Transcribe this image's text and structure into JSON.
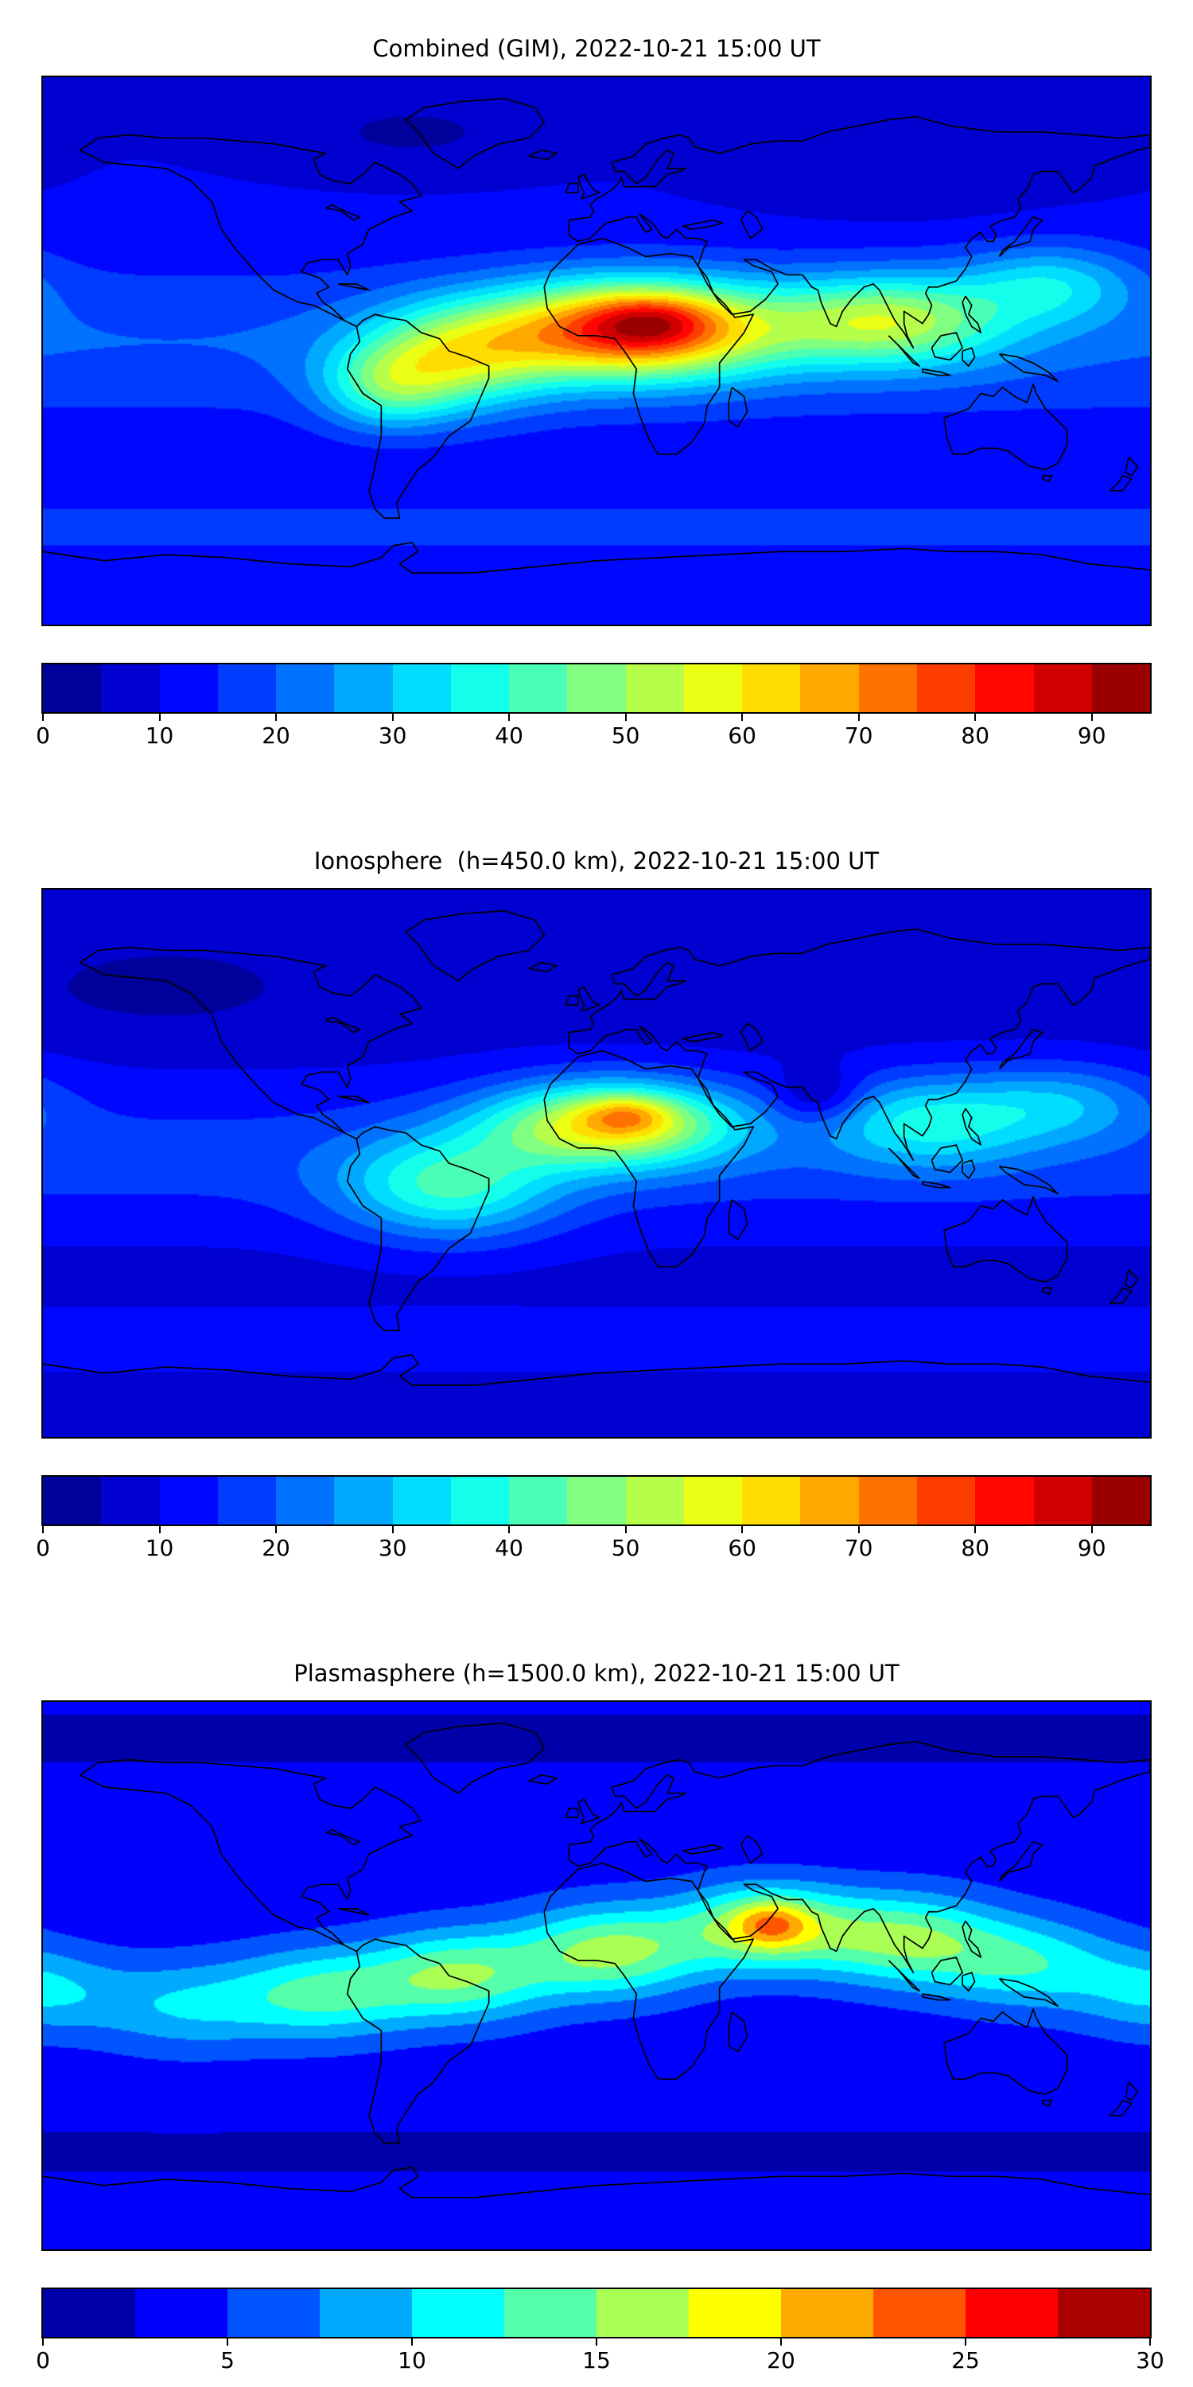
{
  "figure": {
    "background": "#ffffff",
    "colormap": "jet",
    "min_color": "#00009a",
    "max_color": "#9a0000"
  },
  "chart_data": [
    {
      "type": "heatmap",
      "title": "Combined (GIM), 2022-10-21 15:00 UT",
      "projection": "equirectangular",
      "lon_range": [
        -180,
        180
      ],
      "lat_range": [
        -90,
        90
      ],
      "colormap": "jet",
      "levels": {
        "min": 0,
        "max": 95,
        "step": 5
      },
      "colorbar_ticks": [
        0,
        10,
        20,
        30,
        40,
        50,
        60,
        70,
        80,
        90
      ],
      "approx_max": 95,
      "field_model": {
        "base": 10,
        "blobs": [
          {
            "lon": 0,
            "lat": 3,
            "amp": 10,
            "sx": 999,
            "sy": 26
          },
          {
            "lon": 12,
            "lat": 7,
            "amp": 62,
            "sx": 45,
            "sy": 16
          },
          {
            "lon": 18,
            "lat": 10,
            "amp": 14,
            "sx": 18,
            "sy": 8
          },
          {
            "lon": -45,
            "lat": -2,
            "amp": 30,
            "sx": 30,
            "sy": 17
          },
          {
            "lon": -68,
            "lat": -12,
            "amp": 22,
            "sx": 22,
            "sy": 14
          },
          {
            "lon": 95,
            "lat": 10,
            "amp": 34,
            "sx": 38,
            "sy": 15
          },
          {
            "lon": 148,
            "lat": 22,
            "amp": 18,
            "sx": 28,
            "sy": 13
          },
          {
            "lon": 0,
            "lat": -58,
            "amp": 7,
            "sx": 999,
            "sy": 10
          },
          {
            "lon": -60,
            "lat": 72,
            "amp": -6,
            "sx": 40,
            "sy": 12
          },
          {
            "lon": 100,
            "lat": 58,
            "amp": -4,
            "sx": 50,
            "sy": 15
          }
        ]
      }
    },
    {
      "type": "heatmap",
      "title": "Ionosphere  (h=450.0 km), 2022-10-21 15:00 UT",
      "projection": "equirectangular",
      "lon_range": [
        -180,
        180
      ],
      "lat_range": [
        -90,
        90
      ],
      "colormap": "jet",
      "levels": {
        "min": 0,
        "max": 95,
        "step": 5
      },
      "colorbar_ticks": [
        0,
        10,
        20,
        30,
        40,
        50,
        60,
        70,
        80,
        90
      ],
      "approx_max": 78,
      "field_model": {
        "base": 8,
        "blobs": [
          {
            "lon": 0,
            "lat": 2,
            "amp": 9,
            "sx": 999,
            "sy": 24
          },
          {
            "lon": 5,
            "lat": 13,
            "amp": 46,
            "sx": 40,
            "sy": 14
          },
          {
            "lon": 10,
            "lat": 16,
            "amp": 14,
            "sx": 14,
            "sy": 6
          },
          {
            "lon": -48,
            "lat": -8,
            "amp": 26,
            "sx": 35,
            "sy": 17
          },
          {
            "lon": 72,
            "lat": 22,
            "amp": -12,
            "sx": 14,
            "sy": 9
          },
          {
            "lon": 108,
            "lat": 14,
            "amp": 22,
            "sx": 34,
            "sy": 15
          },
          {
            "lon": 152,
            "lat": 20,
            "amp": 15,
            "sx": 30,
            "sy": 13
          },
          {
            "lon": 0,
            "lat": -58,
            "amp": 6,
            "sx": 999,
            "sy": 10
          },
          {
            "lon": -140,
            "lat": 58,
            "amp": -5,
            "sx": 45,
            "sy": 14
          }
        ]
      }
    },
    {
      "type": "heatmap",
      "title": "Plasmasphere (h=1500.0 km), 2022-10-21 15:00 UT",
      "projection": "equirectangular",
      "lon_range": [
        -180,
        180
      ],
      "lat_range": [
        -90,
        90
      ],
      "colormap": "jet",
      "levels": {
        "min": 0,
        "max": 30,
        "step": 2.5
      },
      "colorbar_ticks": [
        0,
        5,
        10,
        15,
        20,
        25,
        30
      ],
      "approx_max": 24,
      "field_model": {
        "base": 3.5,
        "blobs": [
          {
            "lon": -90,
            "lat": -6,
            "amp": 9,
            "sx": 30,
            "sy": 15
          },
          {
            "lon": -45,
            "lat": 0,
            "amp": 11,
            "sx": 30,
            "sy": 15
          },
          {
            "lon": 5,
            "lat": 8,
            "amp": 12,
            "sx": 30,
            "sy": 15
          },
          {
            "lon": 55,
            "lat": 16,
            "amp": 13,
            "sx": 28,
            "sy": 14
          },
          {
            "lon": 57,
            "lat": 17,
            "amp": 6,
            "sx": 11,
            "sy": 7
          },
          {
            "lon": 100,
            "lat": 12,
            "amp": 11,
            "sx": 30,
            "sy": 15
          },
          {
            "lon": 140,
            "lat": 4,
            "amp": 8,
            "sx": 30,
            "sy": 15
          },
          {
            "lon": -135,
            "lat": -10,
            "amp": 6,
            "sx": 30,
            "sy": 15
          },
          {
            "lon": 180,
            "lat": -5,
            "amp": 6,
            "sx": 25,
            "sy": 14
          },
          {
            "lon": 0,
            "lat": -58,
            "amp": -1.5,
            "sx": 999,
            "sy": 10
          },
          {
            "lon": 0,
            "lat": 78,
            "amp": -1.5,
            "sx": 999,
            "sy": 12
          }
        ]
      }
    }
  ]
}
